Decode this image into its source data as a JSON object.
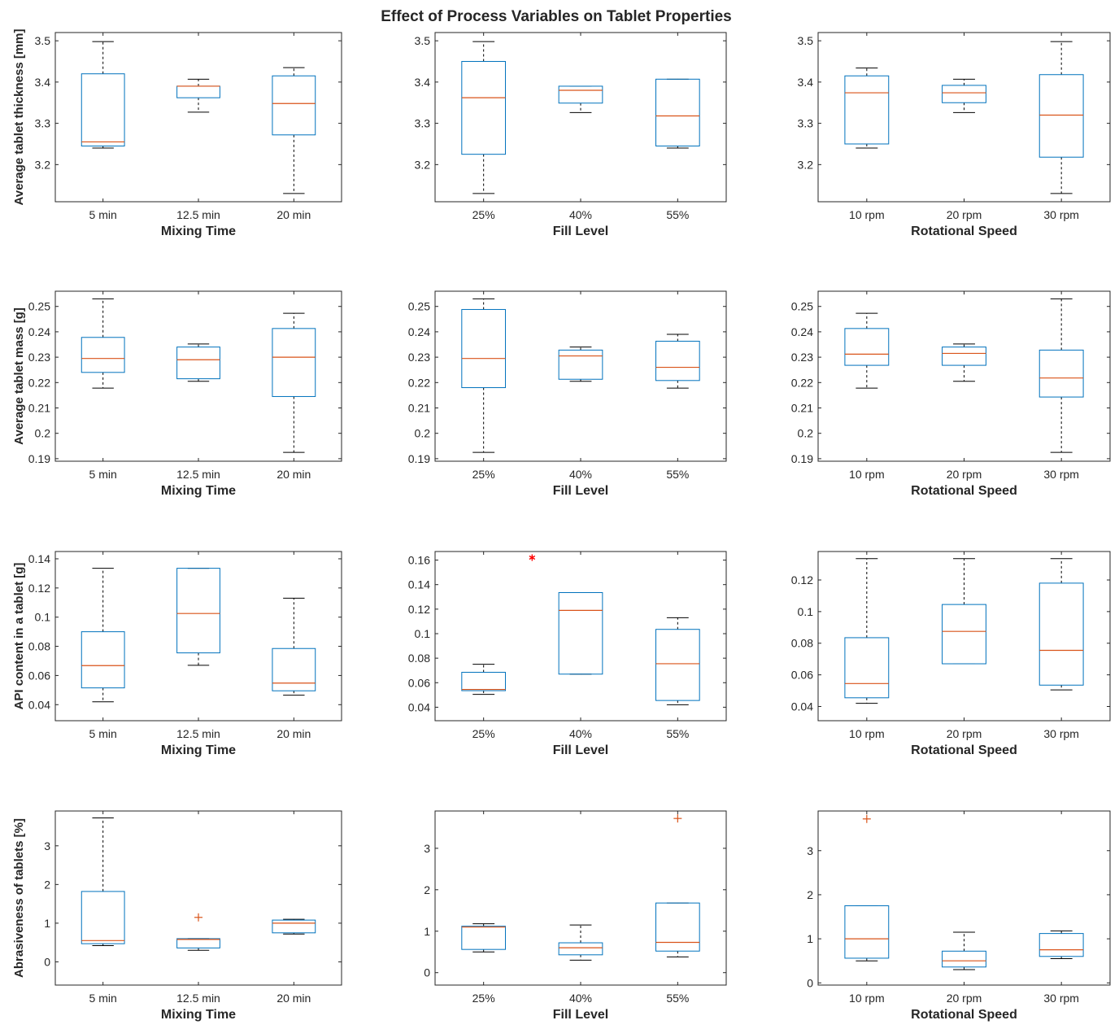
{
  "figure_title": "Effect of Process Variables on Tablet Properties",
  "colors": {
    "box": "#0072BD",
    "median": "#D95319",
    "whisker": "#000000",
    "outlier_plus": "#D95319",
    "outlier_star": "#FF0000"
  },
  "chart_data": [
    {
      "type": "box",
      "row": 0,
      "col": 0,
      "xlabel": "Mixing Time",
      "ylabel": "Average tablet thickness [mm]",
      "ylim": [
        3.11,
        3.52
      ],
      "yticks": [
        3.2,
        3.3,
        3.4,
        3.5
      ],
      "ytick_labels": [
        "3.2",
        "3.3",
        "3.4",
        "3.5"
      ],
      "categories": [
        "5 min",
        "12.5 min",
        "20 min"
      ],
      "boxes": [
        {
          "low": 3.24,
          "q1": 3.245,
          "median": 3.255,
          "q3": 3.42,
          "high": 3.498
        },
        {
          "low": 3.327,
          "q1": 3.362,
          "median": 3.39,
          "q3": 3.39,
          "high": 3.407
        },
        {
          "low": 3.13,
          "q1": 3.272,
          "median": 3.348,
          "q3": 3.415,
          "high": 3.435
        }
      ],
      "outliers": []
    },
    {
      "type": "box",
      "row": 0,
      "col": 1,
      "xlabel": "Fill Level",
      "ylabel": "",
      "ylim": [
        3.11,
        3.52
      ],
      "yticks": [
        3.2,
        3.3,
        3.4,
        3.5
      ],
      "ytick_labels": [
        "3.2",
        "3.3",
        "3.4",
        "3.5"
      ],
      "categories": [
        "25%",
        "40%",
        "55%"
      ],
      "boxes": [
        {
          "low": 3.13,
          "q1": 3.225,
          "median": 3.362,
          "q3": 3.45,
          "high": 3.498
        },
        {
          "low": 3.326,
          "q1": 3.349,
          "median": 3.38,
          "q3": 3.39,
          "high": 3.39
        },
        {
          "low": 3.24,
          "q1": 3.245,
          "median": 3.318,
          "q3": 3.407,
          "high": 3.407
        }
      ],
      "outliers": []
    },
    {
      "type": "box",
      "row": 0,
      "col": 2,
      "xlabel": "Rotational Speed",
      "ylabel": "",
      "ylim": [
        3.11,
        3.52
      ],
      "yticks": [
        3.2,
        3.3,
        3.4,
        3.5
      ],
      "ytick_labels": [
        "3.2",
        "3.3",
        "3.4",
        "3.5"
      ],
      "categories": [
        "10 rpm",
        "20 rpm",
        "30 rpm"
      ],
      "boxes": [
        {
          "low": 3.24,
          "q1": 3.25,
          "median": 3.374,
          "q3": 3.415,
          "high": 3.434
        },
        {
          "low": 3.326,
          "q1": 3.35,
          "median": 3.374,
          "q3": 3.392,
          "high": 3.407
        },
        {
          "low": 3.13,
          "q1": 3.218,
          "median": 3.32,
          "q3": 3.418,
          "high": 3.498
        }
      ],
      "outliers": []
    },
    {
      "type": "box",
      "row": 1,
      "col": 0,
      "xlabel": "Mixing Time",
      "ylabel": "Average tablet mass [g]",
      "ylim": [
        0.189,
        0.256
      ],
      "yticks": [
        0.19,
        0.2,
        0.21,
        0.22,
        0.23,
        0.24,
        0.25
      ],
      "ytick_labels": [
        "0.19",
        "0.2",
        "0.21",
        "0.22",
        "0.23",
        "0.24",
        "0.25"
      ],
      "categories": [
        "5 min",
        "12.5 min",
        "20 min"
      ],
      "boxes": [
        {
          "low": 0.2178,
          "q1": 0.224,
          "median": 0.2295,
          "q3": 0.2378,
          "high": 0.253
        },
        {
          "low": 0.2205,
          "q1": 0.2215,
          "median": 0.229,
          "q3": 0.234,
          "high": 0.2352
        },
        {
          "low": 0.1925,
          "q1": 0.2145,
          "median": 0.23,
          "q3": 0.2413,
          "high": 0.2473
        }
      ],
      "outliers": []
    },
    {
      "type": "box",
      "row": 1,
      "col": 1,
      "xlabel": "Fill Level",
      "ylabel": "",
      "ylim": [
        0.189,
        0.256
      ],
      "yticks": [
        0.19,
        0.2,
        0.21,
        0.22,
        0.23,
        0.24,
        0.25
      ],
      "ytick_labels": [
        "0.19",
        "0.2",
        "0.21",
        "0.22",
        "0.23",
        "0.24",
        "0.25"
      ],
      "categories": [
        "25%",
        "40%",
        "55%"
      ],
      "boxes": [
        {
          "low": 0.1925,
          "q1": 0.218,
          "median": 0.2295,
          "q3": 0.2488,
          "high": 0.253
        },
        {
          "low": 0.2205,
          "q1": 0.2213,
          "median": 0.2305,
          "q3": 0.2328,
          "high": 0.234
        },
        {
          "low": 0.2178,
          "q1": 0.2208,
          "median": 0.226,
          "q3": 0.2363,
          "high": 0.239
        }
      ],
      "outliers": []
    },
    {
      "type": "box",
      "row": 1,
      "col": 2,
      "xlabel": "Rotational Speed",
      "ylabel": "",
      "ylim": [
        0.189,
        0.256
      ],
      "yticks": [
        0.19,
        0.2,
        0.21,
        0.22,
        0.23,
        0.24,
        0.25
      ],
      "ytick_labels": [
        "0.19",
        "0.2",
        "0.21",
        "0.22",
        "0.23",
        "0.24",
        "0.25"
      ],
      "categories": [
        "10 rpm",
        "20 rpm",
        "30 rpm"
      ],
      "boxes": [
        {
          "low": 0.2178,
          "q1": 0.2268,
          "median": 0.2312,
          "q3": 0.2413,
          "high": 0.2473
        },
        {
          "low": 0.2205,
          "q1": 0.2268,
          "median": 0.2315,
          "q3": 0.234,
          "high": 0.2352
        },
        {
          "low": 0.1925,
          "q1": 0.2143,
          "median": 0.2218,
          "q3": 0.2328,
          "high": 0.253
        }
      ],
      "outliers": []
    },
    {
      "type": "box",
      "row": 2,
      "col": 0,
      "xlabel": "Mixing Time",
      "ylabel": "API content in a tablet [g]",
      "ylim": [
        0.029,
        0.145
      ],
      "yticks": [
        0.04,
        0.06,
        0.08,
        0.1,
        0.12,
        0.14
      ],
      "ytick_labels": [
        "0.04",
        "0.06",
        "0.08",
        "0.1",
        "0.12",
        "0.14"
      ],
      "categories": [
        "5 min",
        "12.5 min",
        "20 min"
      ],
      "boxes": [
        {
          "low": 0.042,
          "q1": 0.0515,
          "median": 0.0668,
          "q3": 0.09,
          "high": 0.1335
        },
        {
          "low": 0.067,
          "q1": 0.0755,
          "median": 0.1025,
          "q3": 0.1335,
          "high": 0.1335
        },
        {
          "low": 0.0465,
          "q1": 0.0495,
          "median": 0.0548,
          "q3": 0.0785,
          "high": 0.113
        }
      ],
      "outliers": []
    },
    {
      "type": "box",
      "row": 2,
      "col": 1,
      "xlabel": "Fill Level",
      "ylabel": "",
      "ylim": [
        0.029,
        0.167
      ],
      "yticks": [
        0.04,
        0.06,
        0.08,
        0.1,
        0.12,
        0.14,
        0.16
      ],
      "ytick_labels": [
        "0.04",
        "0.06",
        "0.08",
        "0.1",
        "0.12",
        "0.14",
        "0.16"
      ],
      "categories": [
        "25%",
        "40%",
        "55%"
      ],
      "boxes": [
        {
          "low": 0.0505,
          "q1": 0.0535,
          "median": 0.0545,
          "q3": 0.0685,
          "high": 0.075
        },
        {
          "low": 0.067,
          "q1": 0.067,
          "median": 0.119,
          "q3": 0.1335,
          "high": 0.1335
        },
        {
          "low": 0.042,
          "q1": 0.0455,
          "median": 0.0755,
          "q3": 0.1035,
          "high": 0.113
        }
      ],
      "outliers": [
        {
          "x": 1.5,
          "y": 0.162,
          "marker": "star"
        }
      ]
    },
    {
      "type": "box",
      "row": 2,
      "col": 2,
      "xlabel": "Rotational Speed",
      "ylabel": "",
      "ylim": [
        0.031,
        0.138
      ],
      "yticks": [
        0.04,
        0.06,
        0.08,
        0.1,
        0.12
      ],
      "ytick_labels": [
        "0.04",
        "0.06",
        "0.08",
        "0.1",
        "0.12"
      ],
      "categories": [
        "10 rpm",
        "20 rpm",
        "30 rpm"
      ],
      "boxes": [
        {
          "low": 0.042,
          "q1": 0.0455,
          "median": 0.0545,
          "q3": 0.0835,
          "high": 0.1335
        },
        {
          "low": 0.067,
          "q1": 0.067,
          "median": 0.0875,
          "q3": 0.1045,
          "high": 0.1335
        },
        {
          "low": 0.0505,
          "q1": 0.0535,
          "median": 0.0755,
          "q3": 0.118,
          "high": 0.1335
        }
      ],
      "outliers": []
    },
    {
      "type": "box",
      "row": 3,
      "col": 0,
      "xlabel": "Mixing Time",
      "ylabel": "Abrasiveness of tablets [%]",
      "ylim": [
        -0.6,
        3.9
      ],
      "yticks": [
        0,
        1,
        2,
        3
      ],
      "ytick_labels": [
        "0",
        "1",
        "2",
        "3"
      ],
      "categories": [
        "5 min",
        "12.5 min",
        "20 min"
      ],
      "boxes": [
        {
          "low": 0.42,
          "q1": 0.47,
          "median": 0.55,
          "q3": 1.82,
          "high": 3.72
        },
        {
          "low": 0.3,
          "q1": 0.36,
          "median": 0.58,
          "q3": 0.6,
          "high": 0.6
        },
        {
          "low": 0.72,
          "q1": 0.75,
          "median": 1.0,
          "q3": 1.08,
          "high": 1.1
        }
      ],
      "outliers": [
        {
          "x": 2,
          "y": 1.15,
          "marker": "plus"
        }
      ]
    },
    {
      "type": "box",
      "row": 3,
      "col": 1,
      "xlabel": "Fill Level",
      "ylabel": "",
      "ylim": [
        -0.3,
        3.9
      ],
      "yticks": [
        0,
        1,
        2,
        3
      ],
      "ytick_labels": [
        "0",
        "1",
        "2",
        "3"
      ],
      "categories": [
        "25%",
        "40%",
        "55%"
      ],
      "boxes": [
        {
          "low": 0.5,
          "q1": 0.56,
          "median": 1.1,
          "q3": 1.12,
          "high": 1.18
        },
        {
          "low": 0.3,
          "q1": 0.43,
          "median": 0.6,
          "q3": 0.72,
          "high": 1.15
        },
        {
          "low": 0.38,
          "q1": 0.52,
          "median": 0.73,
          "q3": 1.68,
          "high": 1.68
        }
      ],
      "outliers": [
        {
          "x": 3,
          "y": 3.72,
          "marker": "plus"
        }
      ]
    },
    {
      "type": "box",
      "row": 3,
      "col": 2,
      "xlabel": "Rotational Speed",
      "ylabel": "",
      "ylim": [
        -0.05,
        3.9
      ],
      "yticks": [
        0,
        1,
        2,
        3
      ],
      "ytick_labels": [
        "0",
        "1",
        "2",
        "3"
      ],
      "categories": [
        "10 rpm",
        "20 rpm",
        "30 rpm"
      ],
      "boxes": [
        {
          "low": 0.5,
          "q1": 0.56,
          "median": 1.0,
          "q3": 1.75,
          "high": 1.75
        },
        {
          "low": 0.3,
          "q1": 0.36,
          "median": 0.5,
          "q3": 0.72,
          "high": 1.15
        },
        {
          "low": 0.55,
          "q1": 0.6,
          "median": 0.75,
          "q3": 1.12,
          "high": 1.18
        }
      ],
      "outliers": [
        {
          "x": 1,
          "y": 3.72,
          "marker": "plus"
        }
      ]
    }
  ]
}
